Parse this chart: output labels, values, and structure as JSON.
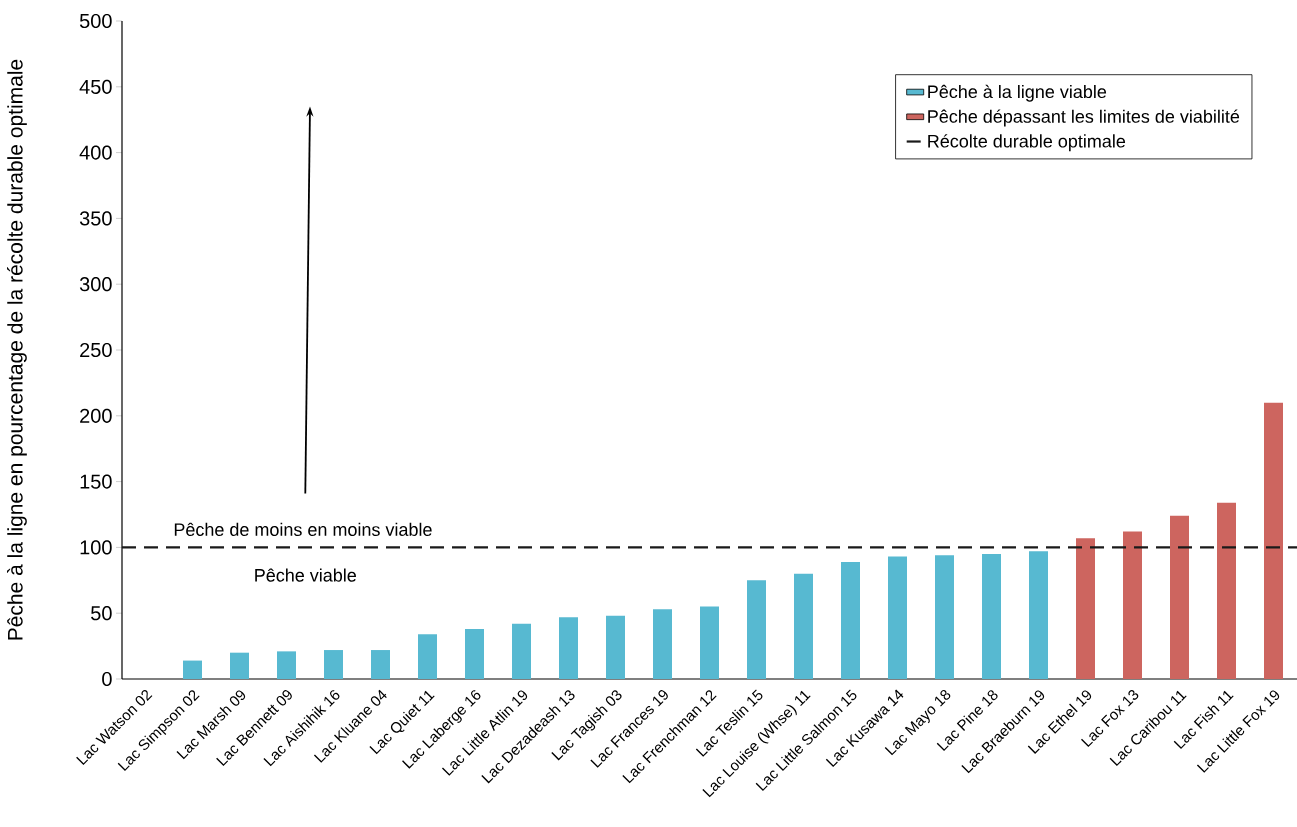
{
  "chart_data": {
    "type": "bar",
    "ylabel": "Pêche à la ligne en pourcentage de la récolte durable optimale",
    "categories": [
      "Lac Watson 02",
      "Lac Simpson 02",
      "Lac Marsh 09",
      "Lac Bennett 09",
      "Lac Aishihik 16",
      "Lac Kluane 04",
      "Lac Quiet 11",
      "Lac Laberge 16",
      "Lac Little Atlin 19",
      "Lac Dezadeash 13",
      "Lac Tagish 03",
      "Lac Frances 19",
      "Lac Frenchman 12",
      "Lac Teslin 15",
      "Lac Louise (Whse) 11",
      "Lac Little Salmon 15",
      "Lac Kusawa 14",
      "Lac Mayo 18",
      "Lac Pine 18",
      "Lac Braeburn 19",
      "Lac Ethel 19",
      "Lac Fox 13",
      "Lac Caribou 11",
      "Lac Fish 11",
      "Lac Little Fox 19"
    ],
    "series": [
      {
        "name": "Pêche à la ligne viable",
        "color": "#57b9d1",
        "values": [
          0,
          14,
          20,
          21,
          22,
          22,
          34,
          38,
          42,
          47,
          48,
          53,
          55,
          75,
          80,
          89,
          93,
          94,
          95,
          97,
          null,
          null,
          null,
          null,
          null
        ]
      },
      {
        "name": "Pêche dépassant les limites de viabilité",
        "color": "#cd655f",
        "values": [
          null,
          null,
          null,
          null,
          null,
          null,
          null,
          null,
          null,
          null,
          null,
          null,
          null,
          null,
          null,
          null,
          null,
          null,
          null,
          null,
          107,
          112,
          124,
          134,
          210
        ]
      }
    ],
    "ylim": [
      0,
      500
    ],
    "yticks": [
      0,
      50,
      100,
      150,
      200,
      250,
      300,
      350,
      400,
      450,
      500
    ],
    "ref_lines": [
      {
        "axis": "y",
        "value": 100,
        "label": "Récolte durable optimale",
        "color": "#1a1a1a",
        "line_style": "dashed"
      }
    ],
    "annotations": [
      "Pêche de moins en moins viable",
      "Pêche viable"
    ],
    "legend": "top right",
    "grid": false
  }
}
